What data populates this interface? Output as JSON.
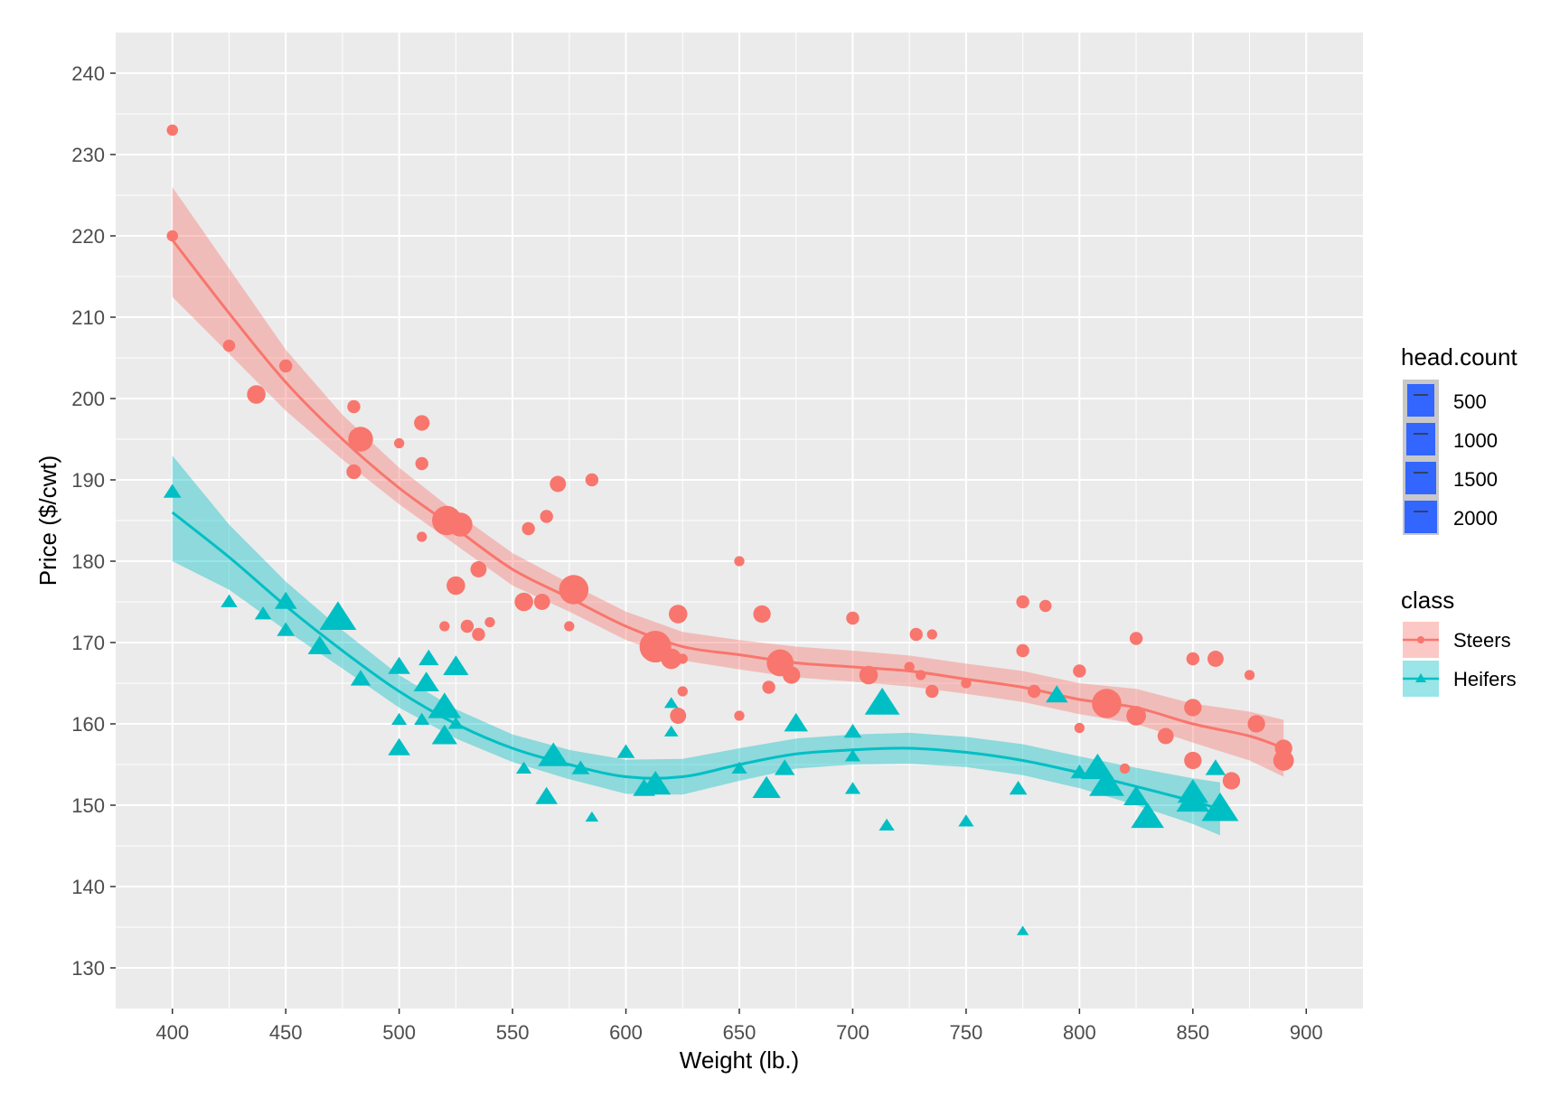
{
  "colors": {
    "steers": "#f8766d",
    "heifers": "#00bfc4",
    "panel": "#ebebeb",
    "grid": "#ffffff",
    "size_key": "#3366ff"
  },
  "chart_data": {
    "type": "scatter",
    "xlabel": "Weight (lb.)",
    "ylabel": "Price ($/cwt)",
    "xlim": [
      375,
      925
    ],
    "ylim": [
      125,
      245
    ],
    "x_ticks": [
      400,
      450,
      500,
      550,
      600,
      650,
      700,
      750,
      800,
      850,
      900
    ],
    "y_ticks": [
      130,
      140,
      150,
      160,
      170,
      180,
      190,
      200,
      210,
      220,
      230,
      240
    ],
    "grid": true,
    "legend_position": "right",
    "size_legend": {
      "title": "head.count",
      "labels": [
        "500",
        "1000",
        "1500",
        "2000"
      ]
    },
    "color_legend": {
      "title": "class",
      "labels": [
        "Steers",
        "Heifers"
      ]
    },
    "series": [
      {
        "name": "Steers",
        "shape": "circle",
        "points": [
          {
            "x": 400,
            "y": 233,
            "n": 60
          },
          {
            "x": 400,
            "y": 220,
            "n": 60
          },
          {
            "x": 425,
            "y": 206.5,
            "n": 80
          },
          {
            "x": 437,
            "y": 200.5,
            "n": 300
          },
          {
            "x": 450,
            "y": 204,
            "n": 100
          },
          {
            "x": 480,
            "y": 199,
            "n": 100
          },
          {
            "x": 480,
            "y": 191,
            "n": 150
          },
          {
            "x": 483,
            "y": 195,
            "n": 650
          },
          {
            "x": 500,
            "y": 194.5,
            "n": 40
          },
          {
            "x": 510,
            "y": 197,
            "n": 180
          },
          {
            "x": 510,
            "y": 192,
            "n": 100
          },
          {
            "x": 510,
            "y": 183,
            "n": 40
          },
          {
            "x": 520,
            "y": 172,
            "n": 40
          },
          {
            "x": 521,
            "y": 185,
            "n": 1000
          },
          {
            "x": 527,
            "y": 184.5,
            "n": 600
          },
          {
            "x": 525,
            "y": 177,
            "n": 300
          },
          {
            "x": 530,
            "y": 172,
            "n": 100
          },
          {
            "x": 535,
            "y": 171,
            "n": 100
          },
          {
            "x": 535,
            "y": 179,
            "n": 200
          },
          {
            "x": 540,
            "y": 172.5,
            "n": 40
          },
          {
            "x": 555,
            "y": 175,
            "n": 300
          },
          {
            "x": 557,
            "y": 184,
            "n": 100
          },
          {
            "x": 563,
            "y": 175,
            "n": 200
          },
          {
            "x": 565,
            "y": 185.5,
            "n": 100
          },
          {
            "x": 570,
            "y": 189.5,
            "n": 200
          },
          {
            "x": 575,
            "y": 172,
            "n": 40
          },
          {
            "x": 577,
            "y": 176.5,
            "n": 1000
          },
          {
            "x": 585,
            "y": 190,
            "n": 100
          },
          {
            "x": 613,
            "y": 169.5,
            "n": 1200
          },
          {
            "x": 620,
            "y": 168,
            "n": 400
          },
          {
            "x": 623,
            "y": 173.5,
            "n": 300
          },
          {
            "x": 623,
            "y": 161,
            "n": 200
          },
          {
            "x": 625,
            "y": 164,
            "n": 40
          },
          {
            "x": 625,
            "y": 168,
            "n": 40
          },
          {
            "x": 650,
            "y": 180,
            "n": 40
          },
          {
            "x": 650,
            "y": 161,
            "n": 40
          },
          {
            "x": 660,
            "y": 173.5,
            "n": 250
          },
          {
            "x": 663,
            "y": 164.5,
            "n": 100
          },
          {
            "x": 668,
            "y": 167.5,
            "n": 800
          },
          {
            "x": 673,
            "y": 166,
            "n": 250
          },
          {
            "x": 700,
            "y": 173,
            "n": 100
          },
          {
            "x": 707,
            "y": 166,
            "n": 300
          },
          {
            "x": 725,
            "y": 167,
            "n": 40
          },
          {
            "x": 728,
            "y": 171,
            "n": 100
          },
          {
            "x": 730,
            "y": 166,
            "n": 40
          },
          {
            "x": 735,
            "y": 171,
            "n": 40
          },
          {
            "x": 735,
            "y": 164,
            "n": 100
          },
          {
            "x": 750,
            "y": 165,
            "n": 40
          },
          {
            "x": 775,
            "y": 175,
            "n": 100
          },
          {
            "x": 775,
            "y": 169,
            "n": 100
          },
          {
            "x": 780,
            "y": 164,
            "n": 100
          },
          {
            "x": 785,
            "y": 174.5,
            "n": 80
          },
          {
            "x": 800,
            "y": 166.5,
            "n": 100
          },
          {
            "x": 800,
            "y": 159.5,
            "n": 40
          },
          {
            "x": 812,
            "y": 162.5,
            "n": 1000
          },
          {
            "x": 820,
            "y": 154.5,
            "n": 40
          },
          {
            "x": 825,
            "y": 170.5,
            "n": 100
          },
          {
            "x": 825,
            "y": 161,
            "n": 350
          },
          {
            "x": 838,
            "y": 158.5,
            "n": 200
          },
          {
            "x": 850,
            "y": 168,
            "n": 100
          },
          {
            "x": 850,
            "y": 162,
            "n": 250
          },
          {
            "x": 850,
            "y": 155.5,
            "n": 250
          },
          {
            "x": 860,
            "y": 168,
            "n": 200
          },
          {
            "x": 867,
            "y": 153,
            "n": 250
          },
          {
            "x": 875,
            "y": 166,
            "n": 40
          },
          {
            "x": 878,
            "y": 160,
            "n": 250
          },
          {
            "x": 890,
            "y": 157,
            "n": 250
          },
          {
            "x": 890,
            "y": 155.5,
            "n": 400
          }
        ],
        "smooth": [
          {
            "x": 400,
            "y": 219.5,
            "lo": 212.5,
            "hi": 226
          },
          {
            "x": 425,
            "y": 210.5,
            "lo": 205.5,
            "hi": 216
          },
          {
            "x": 450,
            "y": 202,
            "lo": 198.5,
            "hi": 206
          },
          {
            "x": 475,
            "y": 195,
            "lo": 192.5,
            "hi": 198
          },
          {
            "x": 500,
            "y": 189,
            "lo": 187,
            "hi": 191.5
          },
          {
            "x": 525,
            "y": 184,
            "lo": 182,
            "hi": 186
          },
          {
            "x": 550,
            "y": 179,
            "lo": 177,
            "hi": 181
          },
          {
            "x": 575,
            "y": 175.5,
            "lo": 173.8,
            "hi": 177.3
          },
          {
            "x": 600,
            "y": 172,
            "lo": 170.3,
            "hi": 173.8
          },
          {
            "x": 625,
            "y": 169.5,
            "lo": 167.8,
            "hi": 171.3
          },
          {
            "x": 650,
            "y": 168.5,
            "lo": 166.7,
            "hi": 170.3
          },
          {
            "x": 675,
            "y": 167.5,
            "lo": 165.7,
            "hi": 169.5
          },
          {
            "x": 700,
            "y": 167,
            "lo": 165.2,
            "hi": 169
          },
          {
            "x": 725,
            "y": 166.5,
            "lo": 164.6,
            "hi": 168.4
          },
          {
            "x": 750,
            "y": 165.5,
            "lo": 163.7,
            "hi": 167.4
          },
          {
            "x": 775,
            "y": 164.5,
            "lo": 162.7,
            "hi": 166.5
          },
          {
            "x": 800,
            "y": 163,
            "lo": 161.2,
            "hi": 165
          },
          {
            "x": 825,
            "y": 162,
            "lo": 160,
            "hi": 164.3
          },
          {
            "x": 850,
            "y": 160,
            "lo": 157.7,
            "hi": 162.5
          },
          {
            "x": 875,
            "y": 158.5,
            "lo": 155.5,
            "hi": 161.5
          },
          {
            "x": 890,
            "y": 157,
            "lo": 153.5,
            "hi": 160.5
          }
        ]
      },
      {
        "name": "Heifers",
        "shape": "triangle",
        "points": [
          {
            "x": 400,
            "y": 188.5,
            "n": 100
          },
          {
            "x": 425,
            "y": 175,
            "n": 80
          },
          {
            "x": 440,
            "y": 173.5,
            "n": 80
          },
          {
            "x": 450,
            "y": 175,
            "n": 200
          },
          {
            "x": 450,
            "y": 171.5,
            "n": 100
          },
          {
            "x": 465,
            "y": 169.5,
            "n": 250
          },
          {
            "x": 473,
            "y": 173,
            "n": 800
          },
          {
            "x": 483,
            "y": 165.5,
            "n": 150
          },
          {
            "x": 500,
            "y": 167,
            "n": 200
          },
          {
            "x": 500,
            "y": 160.5,
            "n": 60
          },
          {
            "x": 500,
            "y": 157,
            "n": 200
          },
          {
            "x": 510,
            "y": 160.5,
            "n": 60
          },
          {
            "x": 512,
            "y": 165,
            "n": 300
          },
          {
            "x": 513,
            "y": 168,
            "n": 150
          },
          {
            "x": 520,
            "y": 162,
            "n": 600
          },
          {
            "x": 520,
            "y": 158.5,
            "n": 300
          },
          {
            "x": 525,
            "y": 167,
            "n": 300
          },
          {
            "x": 525,
            "y": 160,
            "n": 60
          },
          {
            "x": 555,
            "y": 154.5,
            "n": 60
          },
          {
            "x": 565,
            "y": 151,
            "n": 200
          },
          {
            "x": 568,
            "y": 156,
            "n": 500
          },
          {
            "x": 580,
            "y": 154.5,
            "n": 100
          },
          {
            "x": 585,
            "y": 148.5,
            "n": 30
          },
          {
            "x": 600,
            "y": 156.5,
            "n": 100
          },
          {
            "x": 608,
            "y": 152,
            "n": 200
          },
          {
            "x": 613,
            "y": 152.5,
            "n": 500
          },
          {
            "x": 620,
            "y": 159,
            "n": 40
          },
          {
            "x": 620,
            "y": 162.5,
            "n": 40
          },
          {
            "x": 650,
            "y": 154.5,
            "n": 60
          },
          {
            "x": 662,
            "y": 152,
            "n": 400
          },
          {
            "x": 670,
            "y": 154.5,
            "n": 150
          },
          {
            "x": 675,
            "y": 160,
            "n": 250
          },
          {
            "x": 700,
            "y": 159,
            "n": 100
          },
          {
            "x": 700,
            "y": 156,
            "n": 60
          },
          {
            "x": 700,
            "y": 152,
            "n": 60
          },
          {
            "x": 713,
            "y": 162.5,
            "n": 700
          },
          {
            "x": 715,
            "y": 147.5,
            "n": 60
          },
          {
            "x": 750,
            "y": 148,
            "n": 60
          },
          {
            "x": 773,
            "y": 152,
            "n": 100
          },
          {
            "x": 775,
            "y": 134.5,
            "n": 20
          },
          {
            "x": 790,
            "y": 163.5,
            "n": 200
          },
          {
            "x": 800,
            "y": 154,
            "n": 100
          },
          {
            "x": 808,
            "y": 154.5,
            "n": 600
          },
          {
            "x": 812,
            "y": 152.5,
            "n": 700
          },
          {
            "x": 825,
            "y": 151,
            "n": 300
          },
          {
            "x": 830,
            "y": 148.5,
            "n": 600
          },
          {
            "x": 850,
            "y": 151.5,
            "n": 500
          },
          {
            "x": 850,
            "y": 150.5,
            "n": 600
          },
          {
            "x": 860,
            "y": 154.5,
            "n": 150
          },
          {
            "x": 862,
            "y": 149.5,
            "n": 800
          }
        ],
        "smooth": [
          {
            "x": 400,
            "y": 186,
            "lo": 180,
            "hi": 193
          },
          {
            "x": 425,
            "y": 180.5,
            "lo": 176.5,
            "hi": 184.5
          },
          {
            "x": 450,
            "y": 174.5,
            "lo": 171.5,
            "hi": 177.5
          },
          {
            "x": 475,
            "y": 169,
            "lo": 166.8,
            "hi": 171.5
          },
          {
            "x": 500,
            "y": 164,
            "lo": 162,
            "hi": 166
          },
          {
            "x": 525,
            "y": 160,
            "lo": 158.2,
            "hi": 161.8
          },
          {
            "x": 550,
            "y": 157,
            "lo": 155.3,
            "hi": 158.7
          },
          {
            "x": 575,
            "y": 155,
            "lo": 153.2,
            "hi": 156.8
          },
          {
            "x": 600,
            "y": 153.5,
            "lo": 151.4,
            "hi": 155.6
          },
          {
            "x": 625,
            "y": 153.5,
            "lo": 151.3,
            "hi": 155.7
          },
          {
            "x": 650,
            "y": 155,
            "lo": 153,
            "hi": 157
          },
          {
            "x": 675,
            "y": 156.3,
            "lo": 154.5,
            "hi": 158.2
          },
          {
            "x": 700,
            "y": 156.8,
            "lo": 155,
            "hi": 158.7
          },
          {
            "x": 725,
            "y": 157,
            "lo": 155.1,
            "hi": 158.9
          },
          {
            "x": 750,
            "y": 156.5,
            "lo": 154.7,
            "hi": 158.4
          },
          {
            "x": 775,
            "y": 155.5,
            "lo": 153.7,
            "hi": 157.5
          },
          {
            "x": 800,
            "y": 154,
            "lo": 152.1,
            "hi": 156
          },
          {
            "x": 825,
            "y": 152.3,
            "lo": 150,
            "hi": 154.6
          },
          {
            "x": 850,
            "y": 150.5,
            "lo": 147.7,
            "hi": 153.3
          },
          {
            "x": 862,
            "y": 149.5,
            "lo": 146.3,
            "hi": 152.8
          }
        ]
      }
    ]
  }
}
